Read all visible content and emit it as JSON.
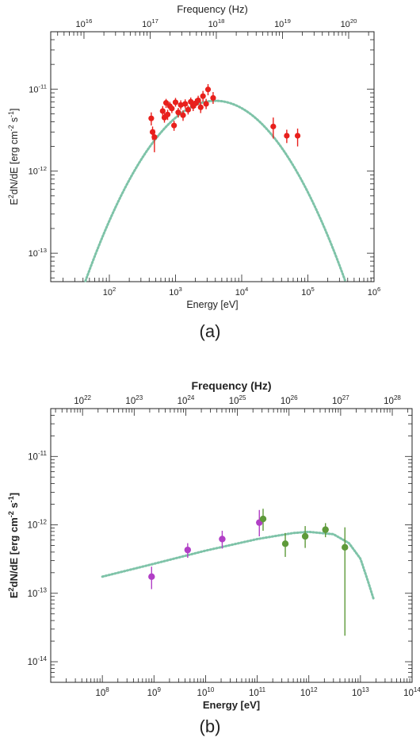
{
  "chart_data": [
    {
      "type": "scatter",
      "panel_label": "(a)",
      "xlabel": "Energy [eV]",
      "top_xlabel": "Frequency (Hz)",
      "ylabel_parts": [
        "E",
        "2",
        "dN/dE  [erg cm",
        "-2",
        " s",
        "-1",
        "]"
      ],
      "x_scale": "log",
      "y_scale": "log",
      "xlim": [
        13,
        1000000
      ],
      "ylim": [
        4.5e-14,
        5e-11
      ],
      "x_ticks": [
        {
          "value": 100,
          "base": "10",
          "exp": "2"
        },
        {
          "value": 1000,
          "base": "10",
          "exp": "3"
        },
        {
          "value": 10000,
          "base": "10",
          "exp": "4"
        },
        {
          "value": 100000,
          "base": "10",
          "exp": "5"
        },
        {
          "value": 1000000,
          "base": "10",
          "exp": "6"
        }
      ],
      "y_ticks": [
        {
          "value": 1e-13,
          "base": "10",
          "exp": "-13"
        },
        {
          "value": 1e-12,
          "base": "10",
          "exp": "-12"
        },
        {
          "value": 1e-11,
          "base": "10",
          "exp": "-11"
        }
      ],
      "top_ticks": [
        {
          "value": 1e+16,
          "base": "10",
          "exp": "16"
        },
        {
          "value": 1e+17,
          "base": "10",
          "exp": "17"
        },
        {
          "value": 1e+18,
          "base": "10",
          "exp": "18"
        },
        {
          "value": 1e+19,
          "base": "10",
          "exp": "19"
        },
        {
          "value": 1e+20,
          "base": "10",
          "exp": "20"
        }
      ],
      "model_curve": {
        "style": "dotted",
        "color": "#7ec3a8",
        "peak_x": 4000,
        "peak_y": 7.2e-12,
        "log_curvature": 0.57,
        "x_range": [
          13,
          1000000
        ]
      },
      "series": [
        {
          "color": "#e8201c",
          "points": [
            {
              "x": 430,
              "y": 4.4e-12,
              "err": [
                3.6e-12,
                5.2e-12
              ]
            },
            {
              "x": 450,
              "y": 3e-12,
              "err": [
                2.4e-12,
                3.5e-12
              ]
            },
            {
              "x": 480,
              "y": 2.6e-12,
              "err": [
                1.7e-12,
                3.2e-12
              ]
            },
            {
              "x": 640,
              "y": 5.4e-12,
              "err": [
                4.5e-12,
                6.2e-12
              ]
            },
            {
              "x": 680,
              "y": 4.5e-12,
              "err": [
                3.9e-12,
                5.1e-12
              ]
            },
            {
              "x": 720,
              "y": 6.8e-12,
              "err": [
                5.9e-12,
                7.6e-12
              ]
            },
            {
              "x": 760,
              "y": 4.9e-12,
              "err": [
                4.2e-12,
                5.6e-12
              ]
            },
            {
              "x": 820,
              "y": 6.2e-12,
              "err": [
                5.5e-12,
                7e-12
              ]
            },
            {
              "x": 880,
              "y": 5.8e-12,
              "err": [
                5.1e-12,
                6.4e-12
              ]
            },
            {
              "x": 950,
              "y": 3.6e-12,
              "err": [
                3.1e-12,
                4.1e-12
              ]
            },
            {
              "x": 1000,
              "y": 6.9e-12,
              "err": [
                6.1e-12,
                7.8e-12
              ]
            },
            {
              "x": 1100,
              "y": 5.2e-12,
              "err": [
                4.5e-12,
                5.9e-12
              ]
            },
            {
              "x": 1200,
              "y": 6.4e-12,
              "err": [
                5.6e-12,
                7.3e-12
              ]
            },
            {
              "x": 1300,
              "y": 4.8e-12,
              "err": [
                4.1e-12,
                5.5e-12
              ]
            },
            {
              "x": 1400,
              "y": 6.6e-12,
              "err": [
                5.8e-12,
                7.5e-12
              ]
            },
            {
              "x": 1550,
              "y": 5.6e-12,
              "err": [
                4.9e-12,
                6.3e-12
              ]
            },
            {
              "x": 1700,
              "y": 7e-12,
              "err": [
                6.2e-12,
                7.9e-12
              ]
            },
            {
              "x": 1850,
              "y": 6.2e-12,
              "err": [
                5.4e-12,
                7e-12
              ]
            },
            {
              "x": 2000,
              "y": 6.7e-12,
              "err": [
                5.9e-12,
                7.6e-12
              ]
            },
            {
              "x": 2200,
              "y": 7.3e-12,
              "err": [
                6.4e-12,
                8.3e-12
              ]
            },
            {
              "x": 2400,
              "y": 6e-12,
              "err": [
                5.1e-12,
                7e-12
              ]
            },
            {
              "x": 2600,
              "y": 8.2e-12,
              "err": [
                7e-12,
                9.5e-12
              ]
            },
            {
              "x": 2900,
              "y": 6.6e-12,
              "err": [
                5.7e-12,
                7.6e-12
              ]
            },
            {
              "x": 3100,
              "y": 9.9e-12,
              "err": [
                8.4e-12,
                1.15e-11
              ]
            },
            {
              "x": 3700,
              "y": 7.8e-12,
              "err": [
                6.6e-12,
                9.2e-12
              ]
            },
            {
              "x": 30000,
              "y": 3.5e-12,
              "err": [
                2.5e-12,
                4.5e-12
              ]
            },
            {
              "x": 48000,
              "y": 2.7e-12,
              "err": [
                2.2e-12,
                3.2e-12
              ]
            },
            {
              "x": 70000,
              "y": 2.7e-12,
              "err": [
                2e-12,
                3.3e-12
              ]
            }
          ]
        }
      ]
    },
    {
      "type": "scatter",
      "panel_label": "(b)",
      "xlabel": "Energy [eV]",
      "top_xlabel": "Frequency (Hz)",
      "ylabel_parts": [
        "E",
        "2",
        "dN/dE  [erg cm",
        "-2",
        " s",
        "-1",
        "]"
      ],
      "x_scale": "log",
      "y_scale": "log",
      "xlim": [
        10000000,
        100000000000000
      ],
      "ylim": [
        5e-15,
        5e-11
      ],
      "x_ticks": [
        {
          "value": 100000000.0,
          "base": "10",
          "exp": "8"
        },
        {
          "value": 1000000000.0,
          "base": "10",
          "exp": "9"
        },
        {
          "value": 10000000000.0,
          "base": "10",
          "exp": "10"
        },
        {
          "value": 100000000000.0,
          "base": "10",
          "exp": "11"
        },
        {
          "value": 1000000000000.0,
          "base": "10",
          "exp": "12"
        },
        {
          "value": 10000000000000.0,
          "base": "10",
          "exp": "13"
        },
        {
          "value": 100000000000000.0,
          "base": "10",
          "exp": "14"
        }
      ],
      "y_ticks": [
        {
          "value": 1e-14,
          "base": "10",
          "exp": "-14"
        },
        {
          "value": 1e-13,
          "base": "10",
          "exp": "-13"
        },
        {
          "value": 1e-12,
          "base": "10",
          "exp": "-12"
        },
        {
          "value": 1e-11,
          "base": "10",
          "exp": "-11"
        }
      ],
      "top_ticks": [
        {
          "value": 1e+22,
          "base": "10",
          "exp": "22"
        },
        {
          "value": 1e+23,
          "base": "10",
          "exp": "23"
        },
        {
          "value": 1e+24,
          "base": "10",
          "exp": "24"
        },
        {
          "value": 1e+25,
          "base": "10",
          "exp": "25"
        },
        {
          "value": 1e+26,
          "base": "10",
          "exp": "26"
        },
        {
          "value": 1e+27,
          "base": "10",
          "exp": "27"
        },
        {
          "value": 1e+28,
          "base": "10",
          "exp": "28"
        }
      ],
      "model_curve": {
        "style": "dotted",
        "color": "#7ec3a8",
        "x_range": [
          100000000,
          18000000000000
        ],
        "knots": [
          [
            100000000.0,
            1.75e-13
          ],
          [
            1000000000.0,
            2.7e-13
          ],
          [
            10000000000.0,
            4.2e-13
          ],
          [
            100000000000.0,
            6.2e-13
          ],
          [
            500000000000.0,
            7.6e-13
          ],
          [
            1000000000000.0,
            7.9e-13
          ],
          [
            3000000000000.0,
            7.3e-13
          ],
          [
            6000000000000.0,
            5.4e-13
          ],
          [
            10000000000000.0,
            3.2e-13
          ],
          [
            14000000000000.0,
            1.5e-13
          ],
          [
            18000000000000.0,
            8.2e-14
          ]
        ]
      },
      "series": [
        {
          "color": "#b13fc6",
          "points": [
            {
              "x": 900000000,
              "y": 1.75e-13,
              "err": [
                1.15e-13,
                2.45e-13
              ]
            },
            {
              "x": 4500000000,
              "y": 4.3e-13,
              "err": [
                3.3e-13,
                5.4e-13
              ]
            },
            {
              "x": 21000000000,
              "y": 6.2e-13,
              "err": [
                4.5e-13,
                8.2e-13
              ]
            },
            {
              "x": 110000000000,
              "y": 1.08e-12,
              "err": [
                6.8e-13,
                1.65e-12
              ]
            }
          ]
        },
        {
          "color": "#5e9a3a",
          "points": [
            {
              "x": 130000000000,
              "y": 1.22e-12,
              "err": [
                8.2e-13,
                1.72e-12
              ]
            },
            {
              "x": 350000000000,
              "y": 5.3e-13,
              "err": [
                3.4e-13,
                7.6e-13
              ]
            },
            {
              "x": 850000000000,
              "y": 6.8e-13,
              "err": [
                4.6e-13,
                9.6e-13
              ]
            },
            {
              "x": 2100000000000,
              "y": 8.5e-13,
              "err": [
                6.6e-13,
                1.06e-12
              ]
            },
            {
              "x": 5000000000000,
              "y": 4.7e-13,
              "err": [
                2.4e-14,
                9.2e-13
              ]
            }
          ]
        }
      ]
    }
  ]
}
